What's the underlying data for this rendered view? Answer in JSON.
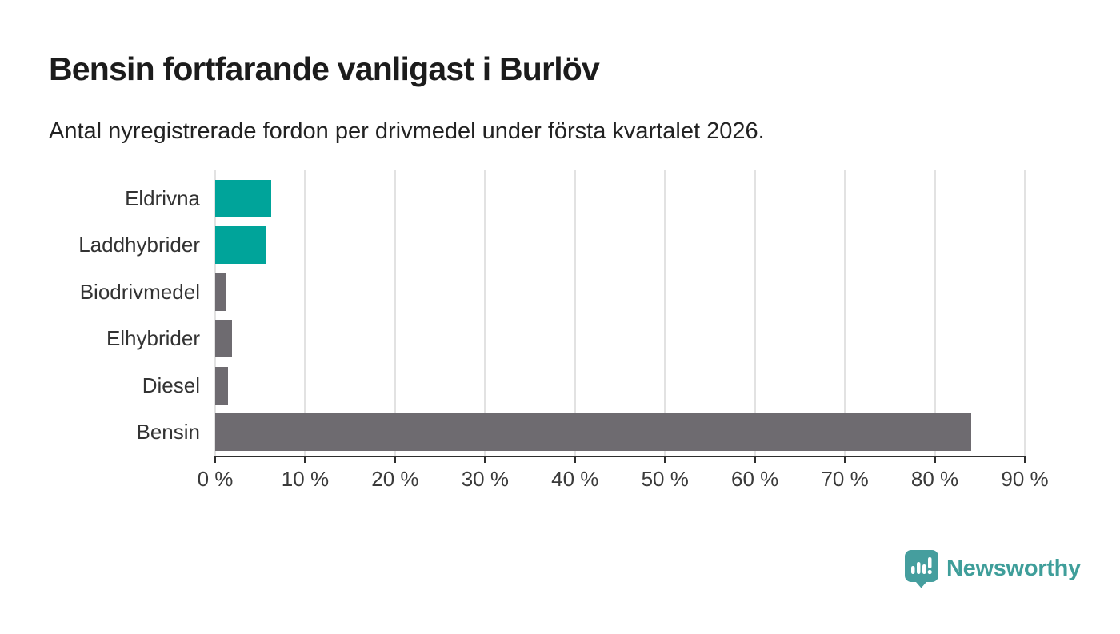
{
  "chart_data": {
    "type": "bar",
    "orientation": "horizontal",
    "title": "Bensin fortfarande vanligast i Burlöv",
    "subtitle": "Antal nyregistrerade fordon per drivmedel under första kvartalet 2026.",
    "categories": [
      "Eldrivna",
      "Laddhybrider",
      "Biodrivmedel",
      "Elhybrider",
      "Diesel",
      "Bensin"
    ],
    "values": [
      6.2,
      5.6,
      1.2,
      1.9,
      1.4,
      84
    ],
    "unit": "%",
    "xlabel": "",
    "ylabel": "",
    "xlim": [
      0,
      90
    ],
    "x_ticks": [
      0,
      10,
      20,
      30,
      40,
      50,
      60,
      70,
      80,
      90
    ],
    "x_tick_labels": [
      "0 %",
      "10 %",
      "20 %",
      "30 %",
      "40 %",
      "50 %",
      "60 %",
      "70 %",
      "80 %",
      "90 %"
    ],
    "grid": "vertical-only",
    "legend": "none",
    "bar_colors": [
      "#00a49a",
      "#00a49a",
      "#6e6b70",
      "#6e6b70",
      "#6e6b70",
      "#6e6b70"
    ]
  },
  "colors": {
    "teal_bar": "#00a49a",
    "gray_bar": "#6e6b70",
    "gridline": "#e2e2e2",
    "axis": "#2f2f2f",
    "title_text": "#1c1c1c",
    "label_text": "#333333",
    "brand_teal": "#3f9e9a",
    "badge_teal": "#459e9e",
    "background": "#ffffff"
  },
  "branding": {
    "logo_text": "Newsworthy",
    "logo_icon": "newsworthy-pin-chart-icon"
  }
}
